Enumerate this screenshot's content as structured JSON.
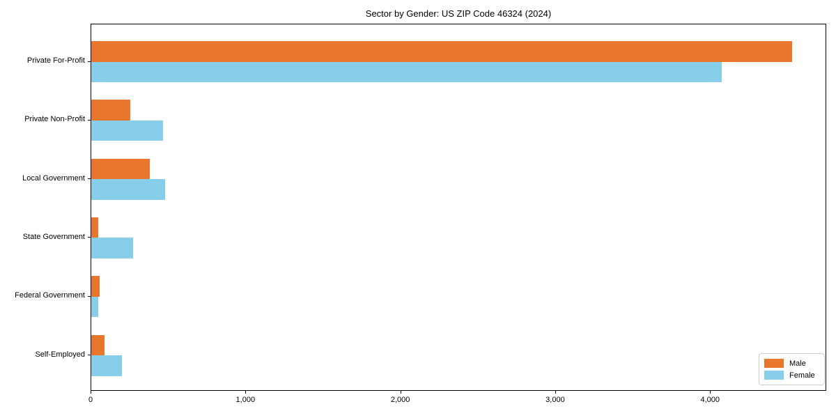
{
  "title": "Sector by Gender: US ZIP Code 46324 (2024)",
  "chart_data": {
    "type": "bar",
    "orientation": "horizontal",
    "title": "Sector by Gender: US ZIP Code 46324 (2024)",
    "categories": [
      "Private For-Profit",
      "Private Non-Profit",
      "Local Government",
      "State Government",
      "Federal Government",
      "Self-Employed"
    ],
    "series": [
      {
        "name": "Male",
        "color": "#e8762c",
        "values": [
          4525,
          250,
          380,
          45,
          55,
          85
        ]
      },
      {
        "name": "Female",
        "color": "#87ceeb",
        "values": [
          4070,
          465,
          475,
          270,
          47,
          197
        ]
      }
    ],
    "xlabel": "",
    "ylabel": "",
    "xlim": [
      0,
      4750
    ],
    "x_ticks": [
      0,
      1000,
      2000,
      3000,
      4000
    ],
    "x_tick_labels": [
      "0",
      "1,000",
      "2,000",
      "3,000",
      "4,000"
    ],
    "grid": false,
    "legend_position": "lower right"
  },
  "legend": {
    "items": [
      {
        "label": "Male",
        "color": "#e8762c"
      },
      {
        "label": "Female",
        "color": "#87ceeb"
      }
    ]
  }
}
